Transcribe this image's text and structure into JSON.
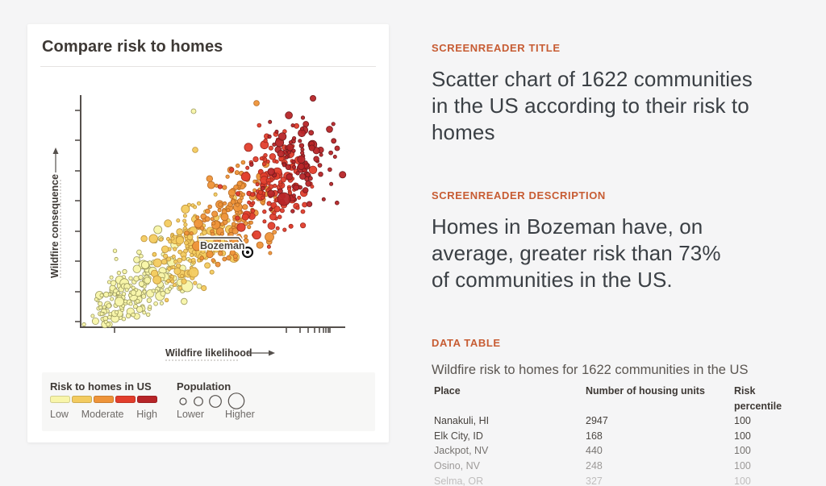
{
  "card": {
    "title": "Compare risk to homes",
    "legend": {
      "risk": {
        "title": "Risk to homes in US",
        "labels": [
          "Low",
          "Moderate",
          "High"
        ]
      },
      "population": {
        "title": "Population",
        "labels": [
          "Lower",
          "Higher"
        ]
      }
    }
  },
  "chart_data": {
    "type": "scatter",
    "title": "Compare risk to homes",
    "xlabel": "Wildfire likelihood",
    "ylabel": "Wildfire consequence",
    "n_points": 1622,
    "x_axis": {
      "scale": "log",
      "tick_labels_visible": false
    },
    "y_axis": {
      "tick_labels_visible": false
    },
    "color_encoding": {
      "variable": "Risk to homes in US",
      "ramp": [
        "#F8F5A9",
        "#F3CB5F",
        "#EE9439",
        "#E23E2C",
        "#B72528"
      ],
      "ramp_strokes": [
        "#9C9A5E",
        "#BE923B",
        "#B56A25",
        "#9E2A20",
        "#701A1C"
      ],
      "ramp_labels": [
        "Low",
        "Moderate",
        "High"
      ]
    },
    "size_encoding": {
      "variable": "Population",
      "labels": [
        "Lower",
        "Higher"
      ]
    },
    "highlight": {
      "label": "Bozeman",
      "risk_percentile": 73,
      "plot_x_frac": 0.63,
      "plot_y_frac_from_bottom": 0.32
    }
  },
  "panel": {
    "title_section": {
      "label": "SCREENREADER TITLE",
      "text": "Scatter chart of 1622 communities\nin the US according to their risk to\nhomes"
    },
    "description_section": {
      "label": "SCREENREADER DESCRIPTION",
      "text": "Homes in Bozeman have, on\naverage, greater risk than 73%\nof communities in the US."
    },
    "table_section": {
      "label": "DATA TABLE",
      "subtitle": "Wildfire risk to homes for 1622 communities in the US",
      "columns": [
        "Place",
        "Number of housing units",
        "Risk percentile"
      ],
      "rows": [
        {
          "place": "Nanakuli, HI",
          "housing_units": "2947",
          "risk_percentile": "100"
        },
        {
          "place": "Elk City, ID",
          "housing_units": "168",
          "risk_percentile": "100"
        },
        {
          "place": "Jackpot, NV",
          "housing_units": "440",
          "risk_percentile": "100"
        },
        {
          "place": "Osino, NV",
          "housing_units": "248",
          "risk_percentile": "100"
        },
        {
          "place": "Selma, OR",
          "housing_units": "327",
          "risk_percentile": "100"
        }
      ],
      "partial_row_visible": true,
      "row_opacities": [
        1,
        0.95,
        0.72,
        0.5,
        0.3
      ]
    }
  },
  "colors": {
    "accent_orange": "#C75C33",
    "page_background": "#F5F5F6",
    "card_background": "#FFFFFF",
    "axis": "#55504C"
  }
}
